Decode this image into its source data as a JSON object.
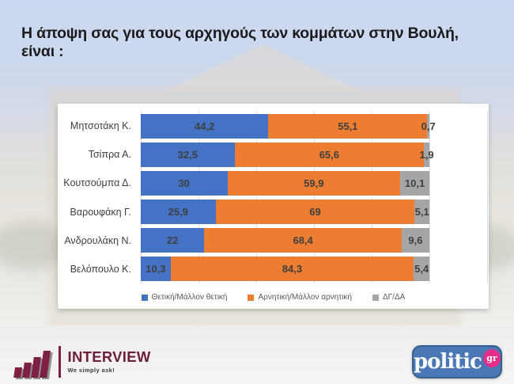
{
  "page": {
    "title": "Η άποψη σας για τους αρχηγούς των κομμάτων στην Βουλή,  είναι :"
  },
  "chart_data": {
    "type": "bar",
    "orientation": "horizontal",
    "stacked": true,
    "title": "Η άποψη σας για τους αρχηγούς των κομμάτων στην Βουλή,  είναι :",
    "categories": [
      "Μητσοτάκη Κ.",
      "Τσίπρα Α.",
      "Κουτσούμπα Δ.",
      "Βαρουφάκη Γ.",
      "Ανδρουλάκη Ν.",
      "Βελόπουλο Κ."
    ],
    "series": [
      {
        "name": "Θετική/Μάλλον θετική",
        "color": "#4472C4",
        "values": [
          44.2,
          32.5,
          30,
          25.9,
          22,
          10.3
        ],
        "labels": [
          "44,2",
          "32,5",
          "30",
          "25,9",
          "22",
          "10,3"
        ]
      },
      {
        "name": "Αρνητική/Μάλλον αρνητική",
        "color": "#ED7D31",
        "values": [
          55.1,
          65.6,
          59.9,
          69,
          68.4,
          84.3
        ],
        "labels": [
          "55,1",
          "65,6",
          "59,9",
          "69",
          "68,4",
          "84,3"
        ]
      },
      {
        "name": "ΔΓ/ΔΑ",
        "color": "#A5A5A5",
        "values": [
          0.7,
          1.9,
          10.1,
          5.1,
          9.6,
          5.4
        ],
        "labels": [
          "0,7",
          "1,9",
          "10,1",
          "5,1",
          "9,6",
          "5,4"
        ]
      }
    ],
    "xlim": [
      0,
      120
    ],
    "gridline_step": 20,
    "grid": true,
    "legend_position": "bottom",
    "value_label_color": "#3f3f3f",
    "gridline_color": "#dcdcdc",
    "background_color": "#ffffff"
  },
  "footer": {
    "interview": {
      "brand": "INTERVIEW",
      "tagline": "We simply ask!",
      "brand_color": "#6E1E3C"
    },
    "politic": {
      "brand": "politic",
      "suffix": "gr",
      "bg_color": "#4A77B6",
      "badge_color": "#E62D8A"
    }
  }
}
